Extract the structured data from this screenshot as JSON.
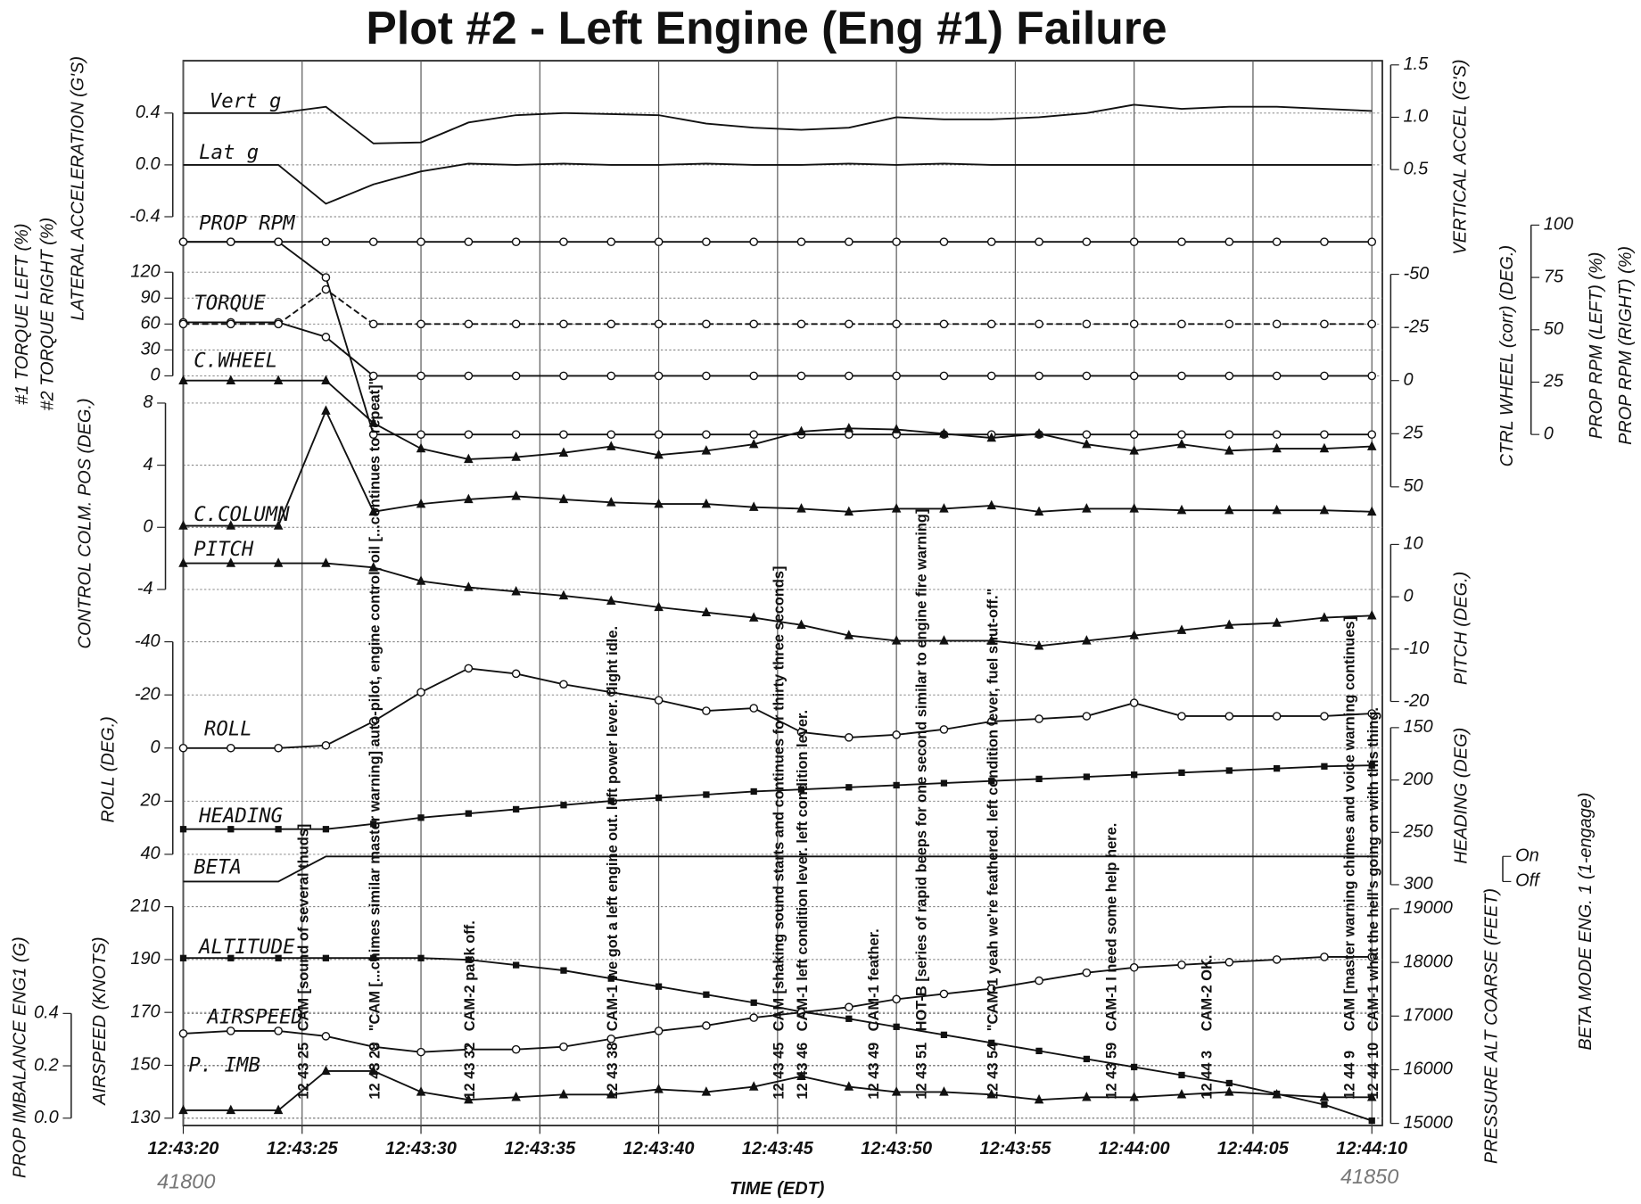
{
  "chart_data": {
    "type": "line",
    "title": "Plot #2 - Left Engine (Eng #1) Failure",
    "xlabel": "TIME     (EDT)",
    "x": [
      "12:43:20",
      "12:43:22",
      "12:43:24",
      "12:43:26",
      "12:43:28",
      "12:43:30",
      "12:43:32",
      "12:43:34",
      "12:43:36",
      "12:43:38",
      "12:43:40",
      "12:43:42",
      "12:43:44",
      "12:43:46",
      "12:43:48",
      "12:43:50",
      "12:43:52",
      "12:43:54",
      "12:43:56",
      "12:43:58",
      "12:44:00",
      "12:44:02",
      "12:44:04",
      "12:44:06",
      "12:44:08",
      "12:44:10"
    ],
    "xlim": [
      "12:43:20",
      "12:44:10"
    ],
    "xticks": [
      "12:43:20",
      "12:43:25",
      "12:43:30",
      "12:43:35",
      "12:43:40",
      "12:43:45",
      "12:43:50",
      "12:43:55",
      "12:44:00",
      "12:44:05",
      "12:44:10"
    ],
    "grid": true,
    "axes": [
      {
        "side": "left",
        "label": [
          "LATERAL ACCELERATION (G'S)"
        ],
        "lim": [
          -0.4,
          0.4
        ],
        "ticks": [
          -0.4,
          {
            "value": 0,
            "label": "0.0"
          },
          0.4
        ]
      },
      {
        "side": "right",
        "label": [
          "VERTICAL ACCEL (G'S)"
        ],
        "lim": [
          0.5,
          1.5
        ],
        "ticks": [
          0.5,
          {
            "value": 1,
            "label": "1.0"
          },
          1.5
        ]
      },
      {
        "side": "left",
        "label": [
          "#1 TORQUE LEFT (%)",
          "#2 TORQUE RIGHT (%)"
        ],
        "lim": [
          0,
          120
        ],
        "ticks": [
          0,
          30,
          60,
          90,
          120
        ]
      },
      {
        "side": "right",
        "label": [
          "PROP RPM (LEFT) (%)",
          "PROP RPM (RIGHT) (%)"
        ],
        "lim": [
          0,
          100
        ],
        "ticks": [
          0,
          25,
          50,
          75,
          100
        ]
      },
      {
        "side": "right",
        "label": [
          "CTRL WHEEL (corr) (DEG.)"
        ],
        "lim": [
          50,
          -50
        ],
        "ticks": [
          -50,
          -25,
          0,
          25,
          50
        ]
      },
      {
        "side": "left",
        "label": [
          "CONTROL COLM. POS (DEG.)"
        ],
        "lim": [
          -4,
          8
        ],
        "ticks": [
          -4,
          0,
          4,
          8
        ]
      },
      {
        "side": "right",
        "label": [
          "PITCH (DEG.)"
        ],
        "lim": [
          -20,
          10
        ],
        "ticks": [
          -20,
          -10,
          0,
          10
        ]
      },
      {
        "side": "left",
        "label": [
          "ROLL (DEG.)"
        ],
        "lim": [
          40,
          -40
        ],
        "ticks": [
          -40,
          -20,
          0,
          20,
          40
        ]
      },
      {
        "side": "right",
        "label": [
          "HEADING (DEG)"
        ],
        "lim": [
          300,
          150
        ],
        "ticks": [
          150,
          200,
          250,
          300
        ]
      },
      {
        "side": "right",
        "label": [
          "BETA MODE ENG. 1 (1-engage)"
        ],
        "lim": [
          0,
          1
        ],
        "ticks": [
          {
            "value": 1,
            "label": "On"
          },
          {
            "value": 0,
            "label": "Off"
          }
        ]
      },
      {
        "side": "left",
        "label": [
          "AIRSPEED (KNOTS)"
        ],
        "lim": [
          130,
          210
        ],
        "ticks": [
          130,
          150,
          170,
          190,
          210
        ]
      },
      {
        "side": "right",
        "label": [
          "PRESSURE ALT COARSE (FEET)"
        ],
        "lim": [
          15000,
          19000
        ],
        "ticks": [
          15000,
          16000,
          17000,
          18000,
          19000
        ]
      },
      {
        "side": "left",
        "label": [
          "PROP IMBALANCE ENG1 (G)"
        ],
        "lim": [
          0,
          0.4
        ],
        "ticks": [
          {
            "value": 0,
            "label": "0.0"
          },
          0.2,
          0.4
        ]
      }
    ],
    "series": [
      {
        "name": "Vert g",
        "axis": 1,
        "color": "#111111",
        "marker": "none",
        "lines": [
          [
            1.04,
            1.04,
            1.04,
            1.1,
            0.75,
            0.76,
            0.95,
            1.02,
            1.04,
            1.03,
            1.02,
            0.94,
            0.9,
            0.88,
            0.9,
            1.0,
            0.98,
            0.98,
            1.0,
            1.04,
            1.12,
            1.08,
            1.1,
            1.1,
            1.08,
            1.06
          ]
        ]
      },
      {
        "name": "Lat g",
        "axis": 0,
        "color": "#111111",
        "marker": "none",
        "lines": [
          [
            0,
            0,
            0,
            -0.3,
            -0.15,
            -0.05,
            0.01,
            0,
            0.01,
            0,
            0,
            0.01,
            0,
            0,
            0.01,
            0,
            0.01,
            0,
            0,
            0,
            0,
            0,
            0,
            0,
            0,
            0
          ]
        ]
      },
      {
        "name": "PROP RPM",
        "axis": 3,
        "color": "#111111",
        "marker": "circle",
        "lines": [
          [
            92,
            92,
            92,
            75,
            0,
            0,
            0,
            0,
            0,
            0,
            0,
            0,
            0,
            0,
            0,
            0,
            0,
            0,
            0,
            0,
            0,
            0,
            0,
            0,
            0,
            0
          ],
          [
            92,
            92,
            92,
            92,
            92,
            92,
            92,
            92,
            92,
            92,
            92,
            92,
            92,
            92,
            92,
            92,
            92,
            92,
            92,
            92,
            92,
            92,
            92,
            92,
            92,
            92
          ]
        ]
      },
      {
        "name": "TORQUE",
        "axis": 2,
        "color": "#111111",
        "marker": "circle",
        "lines": [
          [
            62,
            62,
            62,
            45,
            0,
            0,
            0,
            0,
            0,
            0,
            0,
            0,
            0,
            0,
            0,
            0,
            0,
            0,
            0,
            0,
            0,
            0,
            0,
            0,
            0,
            0
          ],
          [
            60,
            60,
            60,
            100,
            60,
            60,
            60,
            60,
            60,
            60,
            60,
            60,
            60,
            60,
            60,
            60,
            60,
            60,
            60,
            60,
            60,
            60,
            60,
            60,
            60,
            60
          ]
        ]
      },
      {
        "name": "C.WHEEL",
        "axis": 4,
        "color": "#111111",
        "marker": "triangle",
        "lines": [
          [
            0,
            0,
            0,
            0,
            20,
            32,
            37,
            36,
            34,
            31,
            35,
            33,
            30,
            24,
            22.5,
            23,
            25,
            27,
            25,
            30,
            33,
            30,
            33,
            32,
            32,
            31
          ]
        ]
      },
      {
        "name": "C.COLUMN",
        "axis": 5,
        "color": "#111111",
        "marker": "triangle",
        "lines": [
          [
            0.1,
            0.1,
            0.1,
            7.5,
            1.0,
            1.5,
            1.8,
            2.0,
            1.8,
            1.6,
            1.5,
            1.5,
            1.3,
            1.2,
            1.0,
            1.2,
            1.2,
            1.4,
            1.0,
            1.2,
            1.2,
            1.1,
            1.1,
            1.1,
            1.1,
            1.0
          ]
        ]
      },
      {
        "name": "PITCH",
        "axis": 6,
        "color": "#111111",
        "marker": "triangle",
        "lines": [
          [
            6.4,
            6.4,
            6.4,
            6.4,
            5.6,
            3,
            1.8,
            1,
            0.2,
            -0.8,
            -2,
            -3,
            -4,
            -5.4,
            -7.4,
            -8.4,
            -8.4,
            -8.4,
            -9.4,
            -8.4,
            -7.4,
            -6.4,
            -5.4,
            -5,
            -4,
            -3.6
          ]
        ]
      },
      {
        "name": "ROLL",
        "axis": 7,
        "color": "#111111",
        "marker": "circle",
        "lines": [
          [
            0,
            0,
            0,
            -1,
            -10,
            -21,
            -30,
            -28,
            -24,
            -21,
            -18,
            -14,
            -15,
            -6,
            -4,
            -5,
            -7,
            -10,
            -11,
            -12,
            -17,
            -12,
            -12,
            -12,
            -12,
            -13
          ]
        ]
      },
      {
        "name": "HEADING",
        "axis": 8,
        "color": "#111111",
        "marker": "square",
        "lines": [
          [
            247,
            247,
            247,
            247,
            242,
            236,
            232,
            228,
            224,
            220,
            217,
            214,
            211,
            209,
            207,
            205,
            203,
            201,
            199,
            197,
            195,
            193,
            191,
            189,
            187,
            186
          ]
        ]
      },
      {
        "name": "BETA",
        "axis": 9,
        "color": "#111111",
        "marker": "none",
        "lines": [
          [
            0,
            0,
            0,
            1,
            1,
            1,
            1,
            1,
            1,
            1,
            1,
            1,
            1,
            1,
            1,
            1,
            1,
            1,
            1,
            1,
            1,
            1,
            1,
            1,
            1,
            1
          ]
        ]
      },
      {
        "name": "ALTITUDE",
        "axis": 11,
        "color": "#111111",
        "marker": "square",
        "lines": [
          [
            18080,
            18080,
            18080,
            18080,
            18080,
            18080,
            18050,
            17950,
            17850,
            17700,
            17550,
            17400,
            17250,
            17080,
            16950,
            16800,
            16650,
            16500,
            16350,
            16200,
            16050,
            15900,
            15750,
            15550,
            15350,
            15050
          ]
        ]
      },
      {
        "name": "AIRSPEED",
        "axis": 10,
        "color": "#111111",
        "marker": "circle",
        "lines": [
          [
            162,
            163,
            163,
            161,
            157,
            155,
            156,
            156,
            157,
            160,
            163,
            165,
            168,
            170,
            172,
            175,
            177,
            179,
            182,
            185,
            187,
            188,
            189,
            190,
            191,
            191
          ]
        ]
      },
      {
        "name": "P. IMB",
        "axis": 12,
        "color": "#111111",
        "marker": "triangle",
        "lines": [
          [
            0.03,
            0.03,
            0.03,
            0.18,
            0.18,
            0.1,
            0.07,
            0.08,
            0.09,
            0.09,
            0.11,
            0.1,
            0.12,
            0.16,
            0.12,
            0.1,
            0.1,
            0.09,
            0.07,
            0.08,
            0.08,
            0.09,
            0.1,
            0.09,
            0.08,
            0.08
          ]
        ]
      }
    ],
    "events": [
      {
        "time": "12 43 25",
        "text": "CAM [sound of several thuds]"
      },
      {
        "time": "12 43 28",
        "text": "\"CAM [...chimes similar master warning] auto-pilot, engine control, oil [...continues to repeat]\""
      },
      {
        "time": "12 43 32",
        "text": "CAM-2 pack off."
      },
      {
        "time": "12 43 38",
        "text": "CAM-1 we got a left engine out.  left power lever.  flight idle."
      },
      {
        "time": "12 43 45",
        "text": "CAM [shaking sound starts and continues for thirty three seconds]"
      },
      {
        "time": "12 43 46",
        "text": "CAM-1 left condition lever.  left condition lever."
      },
      {
        "time": "12 43 49",
        "text": "CAM-1 feather."
      },
      {
        "time": "12 43 51",
        "text": "HOT-B [series of rapid beeps for one second similar to engine fire warning]"
      },
      {
        "time": "12 43 54",
        "text": "\"CAM-1 yeah we're feathered.  left condition lever, fuel shut-off.\""
      },
      {
        "time": "12 43 59",
        "text": "CAM-1 I need some help here."
      },
      {
        "time": "12 44 3",
        "text": "CAM-2 OK."
      },
      {
        "time": "12 44 9",
        "text": "CAM [master warning chimes and voice warning continues]"
      },
      {
        "time": "12 44 10",
        "text": "CAM-1 what the hell's going on with this thing."
      }
    ],
    "marks": [
      "41800",
      "41850"
    ]
  }
}
